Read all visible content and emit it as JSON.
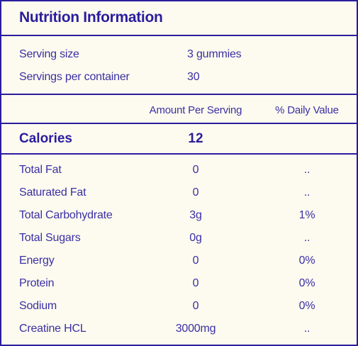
{
  "title": "Nutrition Information",
  "serving": [
    {
      "label": "Serving size",
      "value": "3 gummies"
    },
    {
      "label": "Servings per container",
      "value": "30"
    }
  ],
  "columns": {
    "amount": "Amount Per Serving",
    "daily": "% Daily Value"
  },
  "calories": {
    "label": "Calories",
    "value": "12"
  },
  "nutrients": [
    {
      "name": "Total Fat",
      "amount": "0",
      "daily": ".."
    },
    {
      "name": "Saturated Fat",
      "amount": "0",
      "daily": ".."
    },
    {
      "name": "Total Carbohydrate",
      "amount": "3g",
      "daily": "1%"
    },
    {
      "name": "Total Sugars",
      "amount": "0g",
      "daily": ".."
    },
    {
      "name": "Energy",
      "amount": "0",
      "daily": "0%"
    },
    {
      "name": "Protein",
      "amount": "0",
      "daily": "0%"
    },
    {
      "name": "Sodium",
      "amount": "0",
      "daily": "0%"
    },
    {
      "name": "Creatine HCL",
      "amount": "3000mg",
      "daily": ".."
    }
  ],
  "colors": {
    "ink": "#2a1d9e",
    "background": "#fdfbef"
  }
}
